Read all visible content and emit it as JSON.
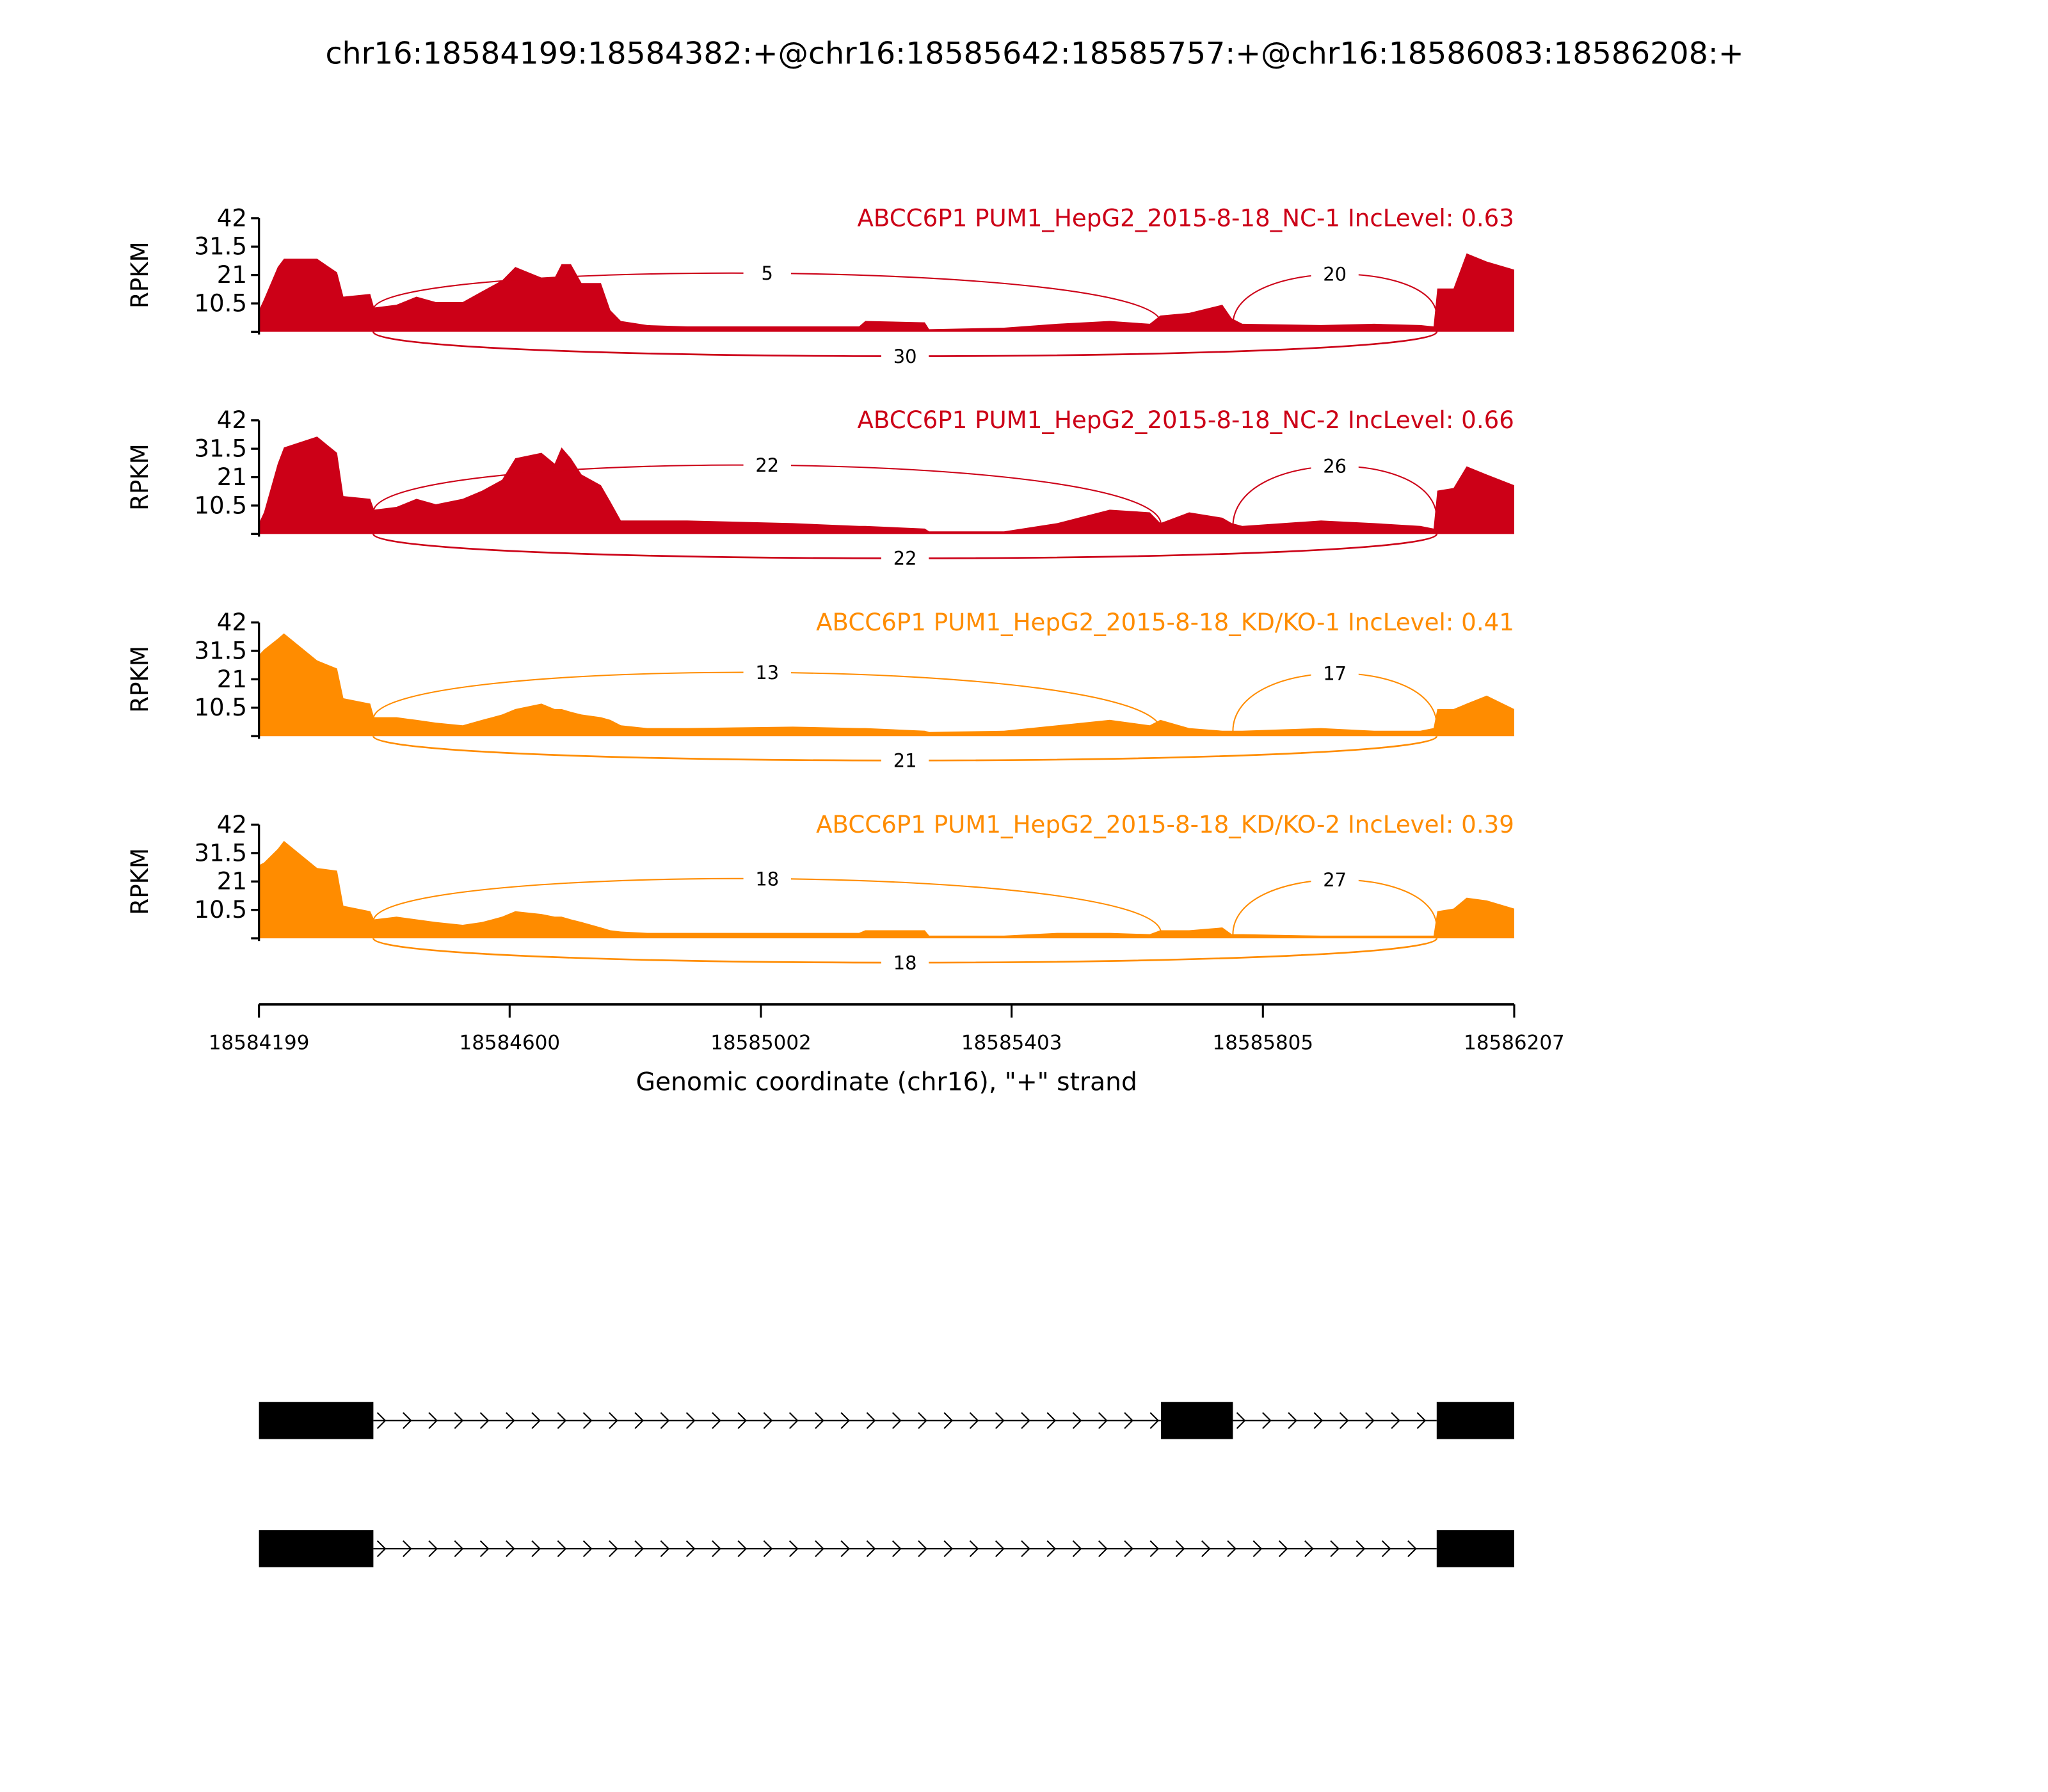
{
  "chart_data": {
    "type": "area",
    "subtype": "sashimi",
    "title": "chr16:18584199:18584382:+@chr16:18585642:18585757:+@chr16:18586083:18586208:+",
    "xlabel": "Genomic coordinate (chr16), \"+\" strand",
    "ylabel": "RPKM",
    "xlim": [
      18584199,
      18586207
    ],
    "ylim": [
      0,
      42
    ],
    "x_ticks": [
      "18584199",
      "18584600",
      "18585002",
      "18585403",
      "18585805",
      "18586207"
    ],
    "y_ticks": [
      "42",
      "31.5",
      "21",
      "10.5"
    ],
    "y_tick_values": [
      42,
      31.5,
      21,
      10.5,
      0
    ],
    "colors": {
      "NC": "#cc0017",
      "KD": "#ff8c00"
    },
    "coverage_positions_offset_from_start": [
      0,
      8,
      30,
      40,
      93,
      125,
      135,
      178,
      184,
      220,
      252,
      283,
      326,
      357,
      389,
      410,
      452,
      473,
      484,
      499,
      516,
      547,
      562,
      579,
      621,
      685,
      854,
      960,
      970,
      1065,
      1072,
      1192,
      1277,
      1361,
      1425,
      1442,
      1488,
      1541,
      1556,
      1573,
      1699,
      1784,
      1858,
      1879,
      1885,
      1911,
      1932,
      1964,
      2008
    ],
    "series": [
      {
        "name": "ABCC6P1 PUM1_HepG2_2015-8-18_NC-1 IncLevel: 0.63",
        "group": "NC",
        "values": [
          8,
          12,
          24,
          27,
          27,
          22,
          13,
          14,
          9,
          10,
          13,
          11,
          11,
          15,
          19,
          24,
          20,
          20,
          25,
          25,
          18,
          18,
          8,
          4,
          2.5,
          2,
          2,
          2,
          4,
          3.5,
          1,
          1.5,
          3,
          4,
          3,
          6,
          7,
          10,
          5,
          3,
          2.5,
          3,
          2.5,
          2,
          16,
          16,
          29,
          26,
          23
        ],
        "junctions": [
          {
            "from": 18584382,
            "to": 18585642,
            "count": "5",
            "side": "above"
          },
          {
            "from": 18585757,
            "to": 18586083,
            "count": "20",
            "side": "above"
          },
          {
            "from": 18584382,
            "to": 18586083,
            "count": "30",
            "side": "below"
          }
        ]
      },
      {
        "name": "ABCC6P1 PUM1_HepG2_2015-8-18_NC-2 IncLevel: 0.66",
        "group": "NC",
        "values": [
          4,
          8,
          26,
          32,
          36,
          30,
          14,
          13,
          9,
          10,
          13,
          11,
          13,
          16,
          20,
          28,
          30,
          26,
          32,
          28,
          22,
          18,
          12,
          5,
          5,
          5,
          4,
          3,
          3,
          2,
          1,
          1,
          4,
          9,
          8,
          4,
          8,
          6,
          4,
          3,
          5,
          4,
          3,
          2,
          16,
          17,
          25,
          22,
          18
        ],
        "junctions": [
          {
            "from": 18584382,
            "to": 18585642,
            "count": "22",
            "side": "above"
          },
          {
            "from": 18585757,
            "to": 18586083,
            "count": "26",
            "side": "above"
          },
          {
            "from": 18584382,
            "to": 18586083,
            "count": "22",
            "side": "below"
          }
        ]
      },
      {
        "name": "ABCC6P1 PUM1_HepG2_2015-8-18_KD/KO-1 IncLevel: 0.41",
        "group": "KD",
        "values": [
          30,
          32,
          36,
          38,
          28,
          25,
          14,
          12,
          7,
          7,
          6,
          5,
          4,
          6,
          8,
          10,
          12,
          10,
          10,
          9,
          8,
          7,
          6,
          4,
          3,
          3,
          3.5,
          3,
          3,
          2,
          1.5,
          2,
          4,
          6,
          4,
          6,
          3,
          2,
          2,
          2,
          3,
          2,
          2,
          3,
          10,
          10,
          12,
          15,
          10
        ],
        "junctions": [
          {
            "from": 18584382,
            "to": 18585642,
            "count": "13",
            "side": "above"
          },
          {
            "from": 18585757,
            "to": 18586083,
            "count": "17",
            "side": "above"
          },
          {
            "from": 18584382,
            "to": 18586083,
            "count": "21",
            "side": "below"
          }
        ]
      },
      {
        "name": "ABCC6P1 PUM1_HepG2_2015-8-18_KD/KO-2 IncLevel: 0.39",
        "group": "KD",
        "values": [
          27,
          28,
          33,
          36,
          26,
          25,
          12,
          10,
          7,
          8,
          7,
          6,
          5,
          6,
          8,
          10,
          9,
          8,
          8,
          7,
          6,
          4,
          3,
          2.5,
          2,
          2,
          2,
          2,
          3,
          3,
          1,
          1,
          2,
          2,
          1.5,
          3,
          3,
          4,
          1.5,
          1.5,
          1,
          1,
          1,
          1,
          10,
          11,
          15,
          14,
          11
        ],
        "junctions": [
          {
            "from": 18584382,
            "to": 18585642,
            "count": "18",
            "side": "above"
          },
          {
            "from": 18585757,
            "to": 18586083,
            "count": "27",
            "side": "above"
          },
          {
            "from": 18584382,
            "to": 18586083,
            "count": "18",
            "side": "below"
          }
        ]
      }
    ],
    "isoforms": [
      {
        "exons": [
          [
            18584199,
            18584382
          ],
          [
            18585642,
            18585757
          ],
          [
            18586083,
            18586208
          ]
        ]
      },
      {
        "exons": [
          [
            18584199,
            18584382
          ],
          [
            18586083,
            18586208
          ]
        ]
      }
    ]
  }
}
